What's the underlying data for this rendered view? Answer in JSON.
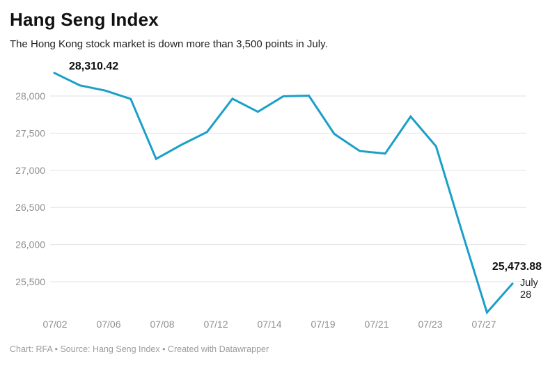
{
  "header": {
    "title": "Hang Seng Index",
    "subtitle": "The Hong Kong stock market is down more than 3,500 points in July."
  },
  "annotations": {
    "start_value": "28,310.42",
    "end_value": "25,473.88",
    "end_date": "July 28"
  },
  "footer": {
    "text": "Chart: RFA • Source: Hang Seng Index • Created with Datawrapper"
  },
  "chart_data": {
    "type": "line",
    "title": "Hang Seng Index",
    "x": [
      "07/02",
      "07/05",
      "07/06",
      "07/07",
      "07/08",
      "07/09",
      "07/12",
      "07/13",
      "07/14",
      "07/15",
      "07/16",
      "07/19",
      "07/20",
      "07/21",
      "07/22",
      "07/23",
      "07/26",
      "07/27",
      "07/28"
    ],
    "values": [
      28310.42,
      28143.5,
      28072.86,
      27960.62,
      27153.13,
      27344.54,
      27515.24,
      27963.41,
      27787.46,
      27996.27,
      28004.68,
      27489.78,
      27259.25,
      27224.58,
      27723.84,
      27321.98,
      26192.32,
      25086.43,
      25473.88
    ],
    "x_tick_labels": [
      "07/02",
      "07/06",
      "07/08",
      "07/12",
      "07/14",
      "07/19",
      "07/21",
      "07/23",
      "07/27"
    ],
    "y_ticks": [
      25500,
      26000,
      26500,
      27000,
      27500,
      28000
    ],
    "y_tick_labels": [
      "25,500",
      "26,000",
      "26,500",
      "27,000",
      "27,500",
      "28,000"
    ],
    "ylim": [
      25000,
      28400
    ],
    "grid": true,
    "legend": "none",
    "line_color": "#1a9fc8",
    "gridline_color": "#e2e2e2",
    "axis_label_color": "#8f8f8f"
  }
}
